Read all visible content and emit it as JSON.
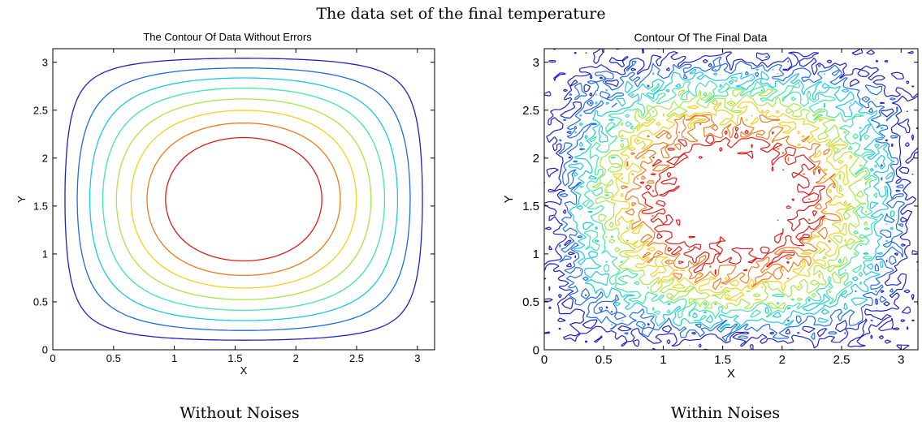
{
  "figure": {
    "title": "The data set of the final temperature",
    "captions": [
      "Without Noises",
      "Within Noises"
    ]
  },
  "chart_data": [
    {
      "type": "contour",
      "title": "The Contour Of Data Without Errors",
      "xlabel": "X",
      "ylabel": "Y",
      "xlim": [
        0,
        3.1416
      ],
      "ylim": [
        0,
        3.1416
      ],
      "xticks": [
        "0",
        "0.5",
        "1",
        "1.5",
        "2",
        "2.5",
        "3"
      ],
      "yticks": [
        "0",
        "0.5",
        "1",
        "1.5",
        "2",
        "2.5",
        "3"
      ],
      "field": "sin(x)*sin(y)",
      "levels": [
        0.1,
        0.2,
        0.3,
        0.4,
        0.5,
        0.6,
        0.7,
        0.8
      ],
      "level_colors": [
        "#1f1fc8",
        "#1e6be6",
        "#1bc8e6",
        "#42e6a8",
        "#a8e646",
        "#f2d21a",
        "#f07a1a",
        "#e01a1a"
      ],
      "noise": 0,
      "grid": false
    },
    {
      "type": "contour",
      "title": "Contour Of The Final Data",
      "xlabel": "X",
      "ylabel": "Y",
      "xlim": [
        0,
        3.1416
      ],
      "ylim": [
        0,
        3.1416
      ],
      "xticks": [
        "0",
        "0.5",
        "1",
        "1.5",
        "2",
        "2.5",
        "3"
      ],
      "yticks": [
        "0",
        "0.5",
        "1",
        "1.5",
        "2",
        "2.5",
        "3"
      ],
      "field": "sin(x)*sin(y)",
      "levels": [
        0.1,
        0.2,
        0.3,
        0.4,
        0.5,
        0.6,
        0.7,
        0.8
      ],
      "level_colors": [
        "#1f1fc8",
        "#1e6be6",
        "#1bc8e6",
        "#42e6a8",
        "#a8e646",
        "#f2d21a",
        "#f07a1a",
        "#e01a1a"
      ],
      "noise": 0.13,
      "grid": false
    }
  ]
}
